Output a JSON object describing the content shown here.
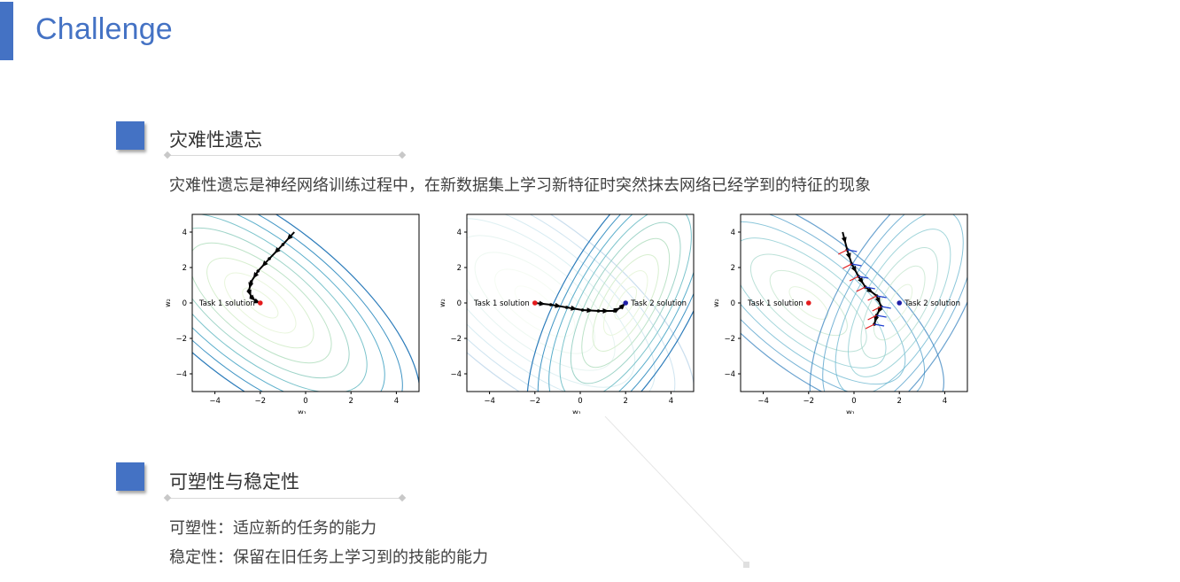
{
  "slide": {
    "title": "Challenge"
  },
  "section1": {
    "heading": "灾难性遗忘",
    "description": "灾难性遗忘是神经网络训练过程中，在新数据集上学习新特征时突然抹去网络已经学到的特征的现象"
  },
  "section2": {
    "heading": "可塑性与稳定性",
    "line1": "可塑性：适应新的任务的能力",
    "line2": "稳定性：保留在旧任务上学习到的技能的能力"
  },
  "colors": {
    "accent": "#4472c4",
    "task1_point": "#e41a1c",
    "task2_point": "#1f1fa8",
    "arrow_red": "#e41a1c",
    "arrow_blue": "#1f3fd0"
  },
  "chart_data": [
    {
      "type": "contour",
      "xlabel": "w₁",
      "ylabel": "w₂",
      "xlim": [
        -5,
        5
      ],
      "ylim": [
        -5,
        5
      ],
      "xticks": [
        -4,
        -2,
        0,
        2,
        4
      ],
      "yticks": [
        -4,
        -2,
        0,
        2,
        4
      ],
      "points": [
        {
          "label": "Task 1 solution",
          "x": -2,
          "y": 0,
          "color": "#e41a1c"
        }
      ],
      "path": [
        [
          -0.5,
          4
        ],
        [
          -1,
          3.3
        ],
        [
          -1.6,
          2.5
        ],
        [
          -2.1,
          1.8
        ],
        [
          -2.4,
          1.2
        ],
        [
          -2.5,
          0.7
        ],
        [
          -2.4,
          0.35
        ],
        [
          -2.2,
          0.1
        ],
        [
          -2,
          0
        ]
      ]
    },
    {
      "type": "contour",
      "xlabel": "w₁",
      "ylabel": "w₂",
      "xlim": [
        -5,
        5
      ],
      "ylim": [
        -5,
        5
      ],
      "xticks": [
        -4,
        -2,
        0,
        2,
        4
      ],
      "yticks": [
        -4,
        -2,
        0,
        2,
        4
      ],
      "points": [
        {
          "label": "Task 1 solution",
          "x": -2,
          "y": 0,
          "color": "#e41a1c"
        },
        {
          "label": "Task 2 solution",
          "x": 2,
          "y": 0,
          "color": "#1f1fa8"
        }
      ],
      "path": [
        [
          -2,
          0
        ],
        [
          -1.3,
          -0.1
        ],
        [
          -0.6,
          -0.25
        ],
        [
          0.1,
          -0.4
        ],
        [
          0.8,
          -0.45
        ],
        [
          1.5,
          -0.45
        ],
        [
          1.8,
          -0.25
        ],
        [
          2,
          0
        ]
      ]
    },
    {
      "type": "contour",
      "xlabel": "w₁",
      "ylabel": "w₂",
      "xlim": [
        -5,
        5
      ],
      "ylim": [
        -5,
        5
      ],
      "xticks": [
        -4,
        -2,
        0,
        2,
        4
      ],
      "yticks": [
        -4,
        -2,
        0,
        2,
        4
      ],
      "points": [
        {
          "label": "Task 1 solution",
          "x": -2,
          "y": 0,
          "color": "#e41a1c"
        },
        {
          "label": "Task 2 solution",
          "x": 2,
          "y": 0,
          "color": "#1f1fa8"
        }
      ],
      "path": [
        [
          -0.5,
          4
        ],
        [
          -0.3,
          3
        ],
        [
          -0.1,
          2.2
        ],
        [
          0.2,
          1.5
        ],
        [
          0.5,
          0.9
        ],
        [
          1,
          0.4
        ],
        [
          1.2,
          -0.2
        ],
        [
          1,
          -0.7
        ],
        [
          0.9,
          -1.2
        ]
      ],
      "arrows": "red and blue gradient arrows at path points"
    }
  ]
}
